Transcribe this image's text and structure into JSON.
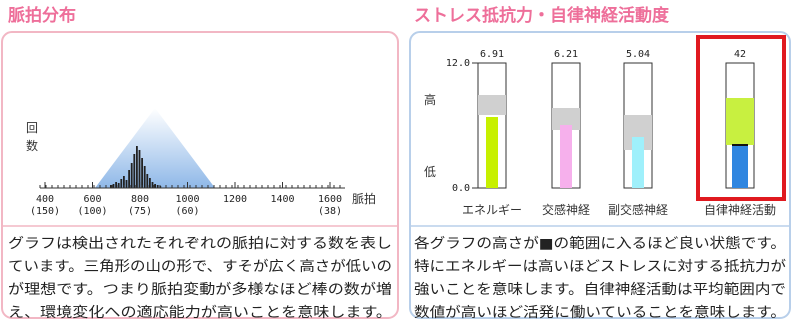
{
  "left": {
    "title": "脈拍分布",
    "y_label": [
      "回",
      "数"
    ],
    "x_ticks": [
      {
        "top": "400",
        "bottom": "(150)"
      },
      {
        "top": "600",
        "bottom": "(100)"
      },
      {
        "top": "800",
        "bottom": "(75)"
      },
      {
        "top": "1000",
        "bottom": "(60)"
      },
      {
        "top": "1200",
        "bottom": ""
      },
      {
        "top": "1400",
        "bottom": ""
      },
      {
        "top": "1600",
        "bottom": "(38)"
      }
    ],
    "x_unit": "脈拍",
    "description": [
      "グラフは検出されたそれぞれの脈拍に対する数を表し",
      "ています。三角形の山の形で、すそが広く高さが低いの",
      "が理想です。つまり脈拍変動が多様なほど棒の数が増",
      "え、環境変化への適応能力が高いことを意味します。"
    ]
  },
  "right": {
    "title": "ストレス抵抗力・自律神経活動度",
    "high_label": "高",
    "low_label": "低",
    "scale_top": "12.0",
    "scale_bottom": "0.0",
    "bars": [
      {
        "value": "6.91",
        "name": "エネルギー"
      },
      {
        "value": "6.21",
        "name": "交感神経"
      },
      {
        "value": "5.04",
        "name": "副交感神経"
      },
      {
        "value": "42",
        "name": "自律神経活動"
      }
    ],
    "description": [
      "各グラフの高さが■の範囲に入るほど良い状態です。",
      "特にエネルギーは高いほどストレスに対する抵抗力が",
      "強いことを意味します。自律神経活動は平均範囲内で",
      "数値が高いほど活発に働いていることを意味します。"
    ]
  }
}
